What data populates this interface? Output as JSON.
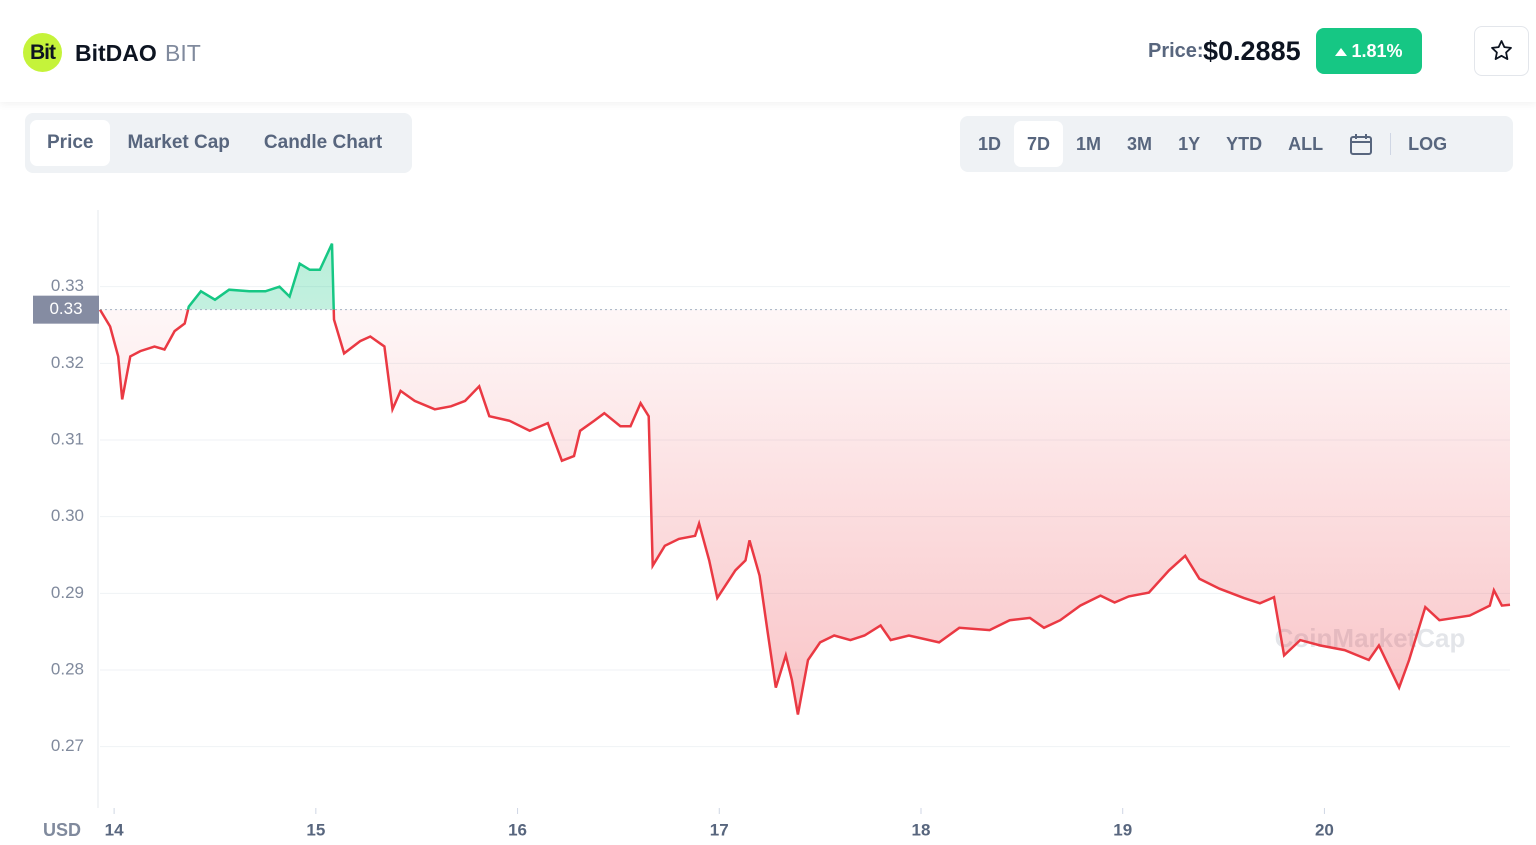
{
  "header": {
    "logo": "Bit",
    "name": "BitDAO",
    "symbol": "BIT",
    "price_label": "Price:",
    "price": "$0.2885",
    "change": "1.81%"
  },
  "tabs": [
    "Price",
    "Market Cap",
    "Candle Chart"
  ],
  "ranges": [
    "1D",
    "7D",
    "1M",
    "3M",
    "1Y",
    "YTD",
    "ALL"
  ],
  "log_label": "LOG",
  "chart_data": {
    "type": "line",
    "ylabel": "USD",
    "watermark": "CoinMarketCap",
    "grid": true,
    "color_up": "#16c784",
    "color_down": "#ea3943",
    "baseline": {
      "value": 0.327,
      "label": "0.33"
    },
    "xlim": [
      13.93,
      20.92
    ],
    "ylim": [
      0.262,
      0.34
    ],
    "xticks": [
      14,
      15,
      16,
      17,
      18,
      19,
      20
    ],
    "yticks": [
      0.27,
      0.28,
      0.29,
      {
        "value": 0.3,
        "label": "0.30"
      },
      0.31,
      0.32,
      0.33
    ],
    "x": [
      13.93,
      13.98,
      14.02,
      14.04,
      14.08,
      14.13,
      14.2,
      14.25,
      14.3,
      14.35,
      14.37,
      14.43,
      14.5,
      14.57,
      14.67,
      14.75,
      14.82,
      14.87,
      14.92,
      14.97,
      15.02,
      15.08,
      15.09,
      15.14,
      15.22,
      15.27,
      15.34,
      15.38,
      15.42,
      15.49,
      15.59,
      15.67,
      15.74,
      15.81,
      15.86,
      15.96,
      16.06,
      16.15,
      16.22,
      16.28,
      16.31,
      16.38,
      16.43,
      16.51,
      16.56,
      16.61,
      16.65,
      16.67,
      16.73,
      16.8,
      16.88,
      16.9,
      16.95,
      16.99,
      17.08,
      17.13,
      17.15,
      17.2,
      17.24,
      17.28,
      17.33,
      17.36,
      17.39,
      17.44,
      17.5,
      17.57,
      17.65,
      17.72,
      17.8,
      17.85,
      17.94,
      18.09,
      18.19,
      18.34,
      18.44,
      18.54,
      18.61,
      18.69,
      18.79,
      18.89,
      18.96,
      19.03,
      19.13,
      19.23,
      19.31,
      19.38,
      19.48,
      19.6,
      19.68,
      19.75,
      19.8,
      19.88,
      19.98,
      20.1,
      20.22,
      20.27,
      20.37,
      20.42,
      20.5,
      20.57,
      20.72,
      20.82,
      20.84,
      20.88,
      20.92
    ],
    "values": [
      0.327,
      0.3248,
      0.3209,
      0.3153,
      0.3209,
      0.3216,
      0.3222,
      0.3218,
      0.3242,
      0.3252,
      0.3274,
      0.3294,
      0.3283,
      0.3296,
      0.3294,
      0.3294,
      0.33,
      0.3287,
      0.333,
      0.3322,
      0.3322,
      0.3356,
      0.3257,
      0.3213,
      0.3229,
      0.3235,
      0.3222,
      0.314,
      0.3164,
      0.3151,
      0.314,
      0.3144,
      0.3151,
      0.317,
      0.3131,
      0.3125,
      0.3112,
      0.3122,
      0.3073,
      0.3079,
      0.3112,
      0.3125,
      0.3135,
      0.3118,
      0.3118,
      0.3148,
      0.3131,
      0.2936,
      0.2962,
      0.2971,
      0.2975,
      0.2991,
      0.2943,
      0.2894,
      0.293,
      0.2943,
      0.2969,
      0.2923,
      0.2849,
      0.2777,
      0.2819,
      0.2787,
      0.2742,
      0.2813,
      0.2836,
      0.2845,
      0.2839,
      0.2845,
      0.2858,
      0.2839,
      0.2845,
      0.2836,
      0.2855,
      0.2852,
      0.2865,
      0.2868,
      0.2855,
      0.2865,
      0.2884,
      0.2897,
      0.2888,
      0.2896,
      0.2901,
      0.293,
      0.2949,
      0.2919,
      0.2906,
      0.2894,
      0.2887,
      0.2895,
      0.2819,
      0.2839,
      0.2832,
      0.2826,
      0.2813,
      0.2832,
      0.2777,
      0.2813,
      0.2882,
      0.2865,
      0.2871,
      0.2884,
      0.2904,
      0.2884,
      0.2885
    ]
  }
}
